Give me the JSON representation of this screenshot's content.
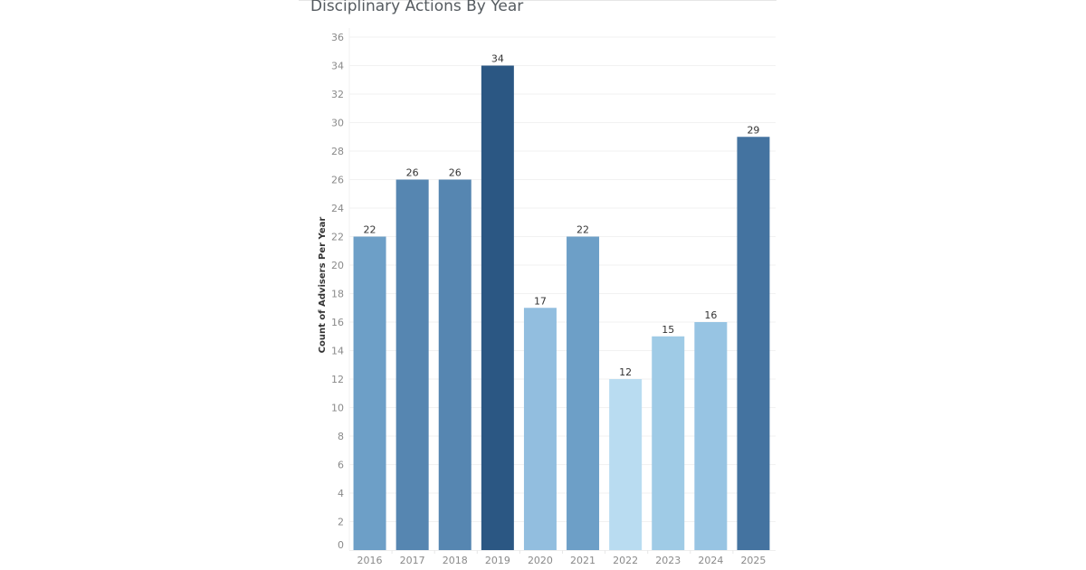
{
  "chart_data": {
    "type": "bar",
    "title": "Disciplinary Actions By Year",
    "xlabel": "",
    "ylabel": "Count of Advisers Per Year",
    "categories": [
      "2016",
      "2017",
      "2018",
      "2019",
      "2020",
      "2021",
      "2022",
      "2023",
      "2024",
      "2025"
    ],
    "values": [
      22,
      26,
      26,
      34,
      17,
      22,
      12,
      15,
      16,
      29
    ],
    "colors": [
      "#6d9fc7",
      "#5686b1",
      "#5686b1",
      "#2b5783",
      "#92bedf",
      "#6d9fc7",
      "#b9dcf1",
      "#9fcbe6",
      "#97c4e3",
      "#4473a0"
    ],
    "ylim": [
      0,
      36
    ],
    "yticks": [
      0,
      2,
      4,
      6,
      8,
      10,
      12,
      14,
      16,
      18,
      20,
      22,
      24,
      26,
      28,
      30,
      32,
      34,
      36
    ],
    "grid": true,
    "data_labels": true
  }
}
